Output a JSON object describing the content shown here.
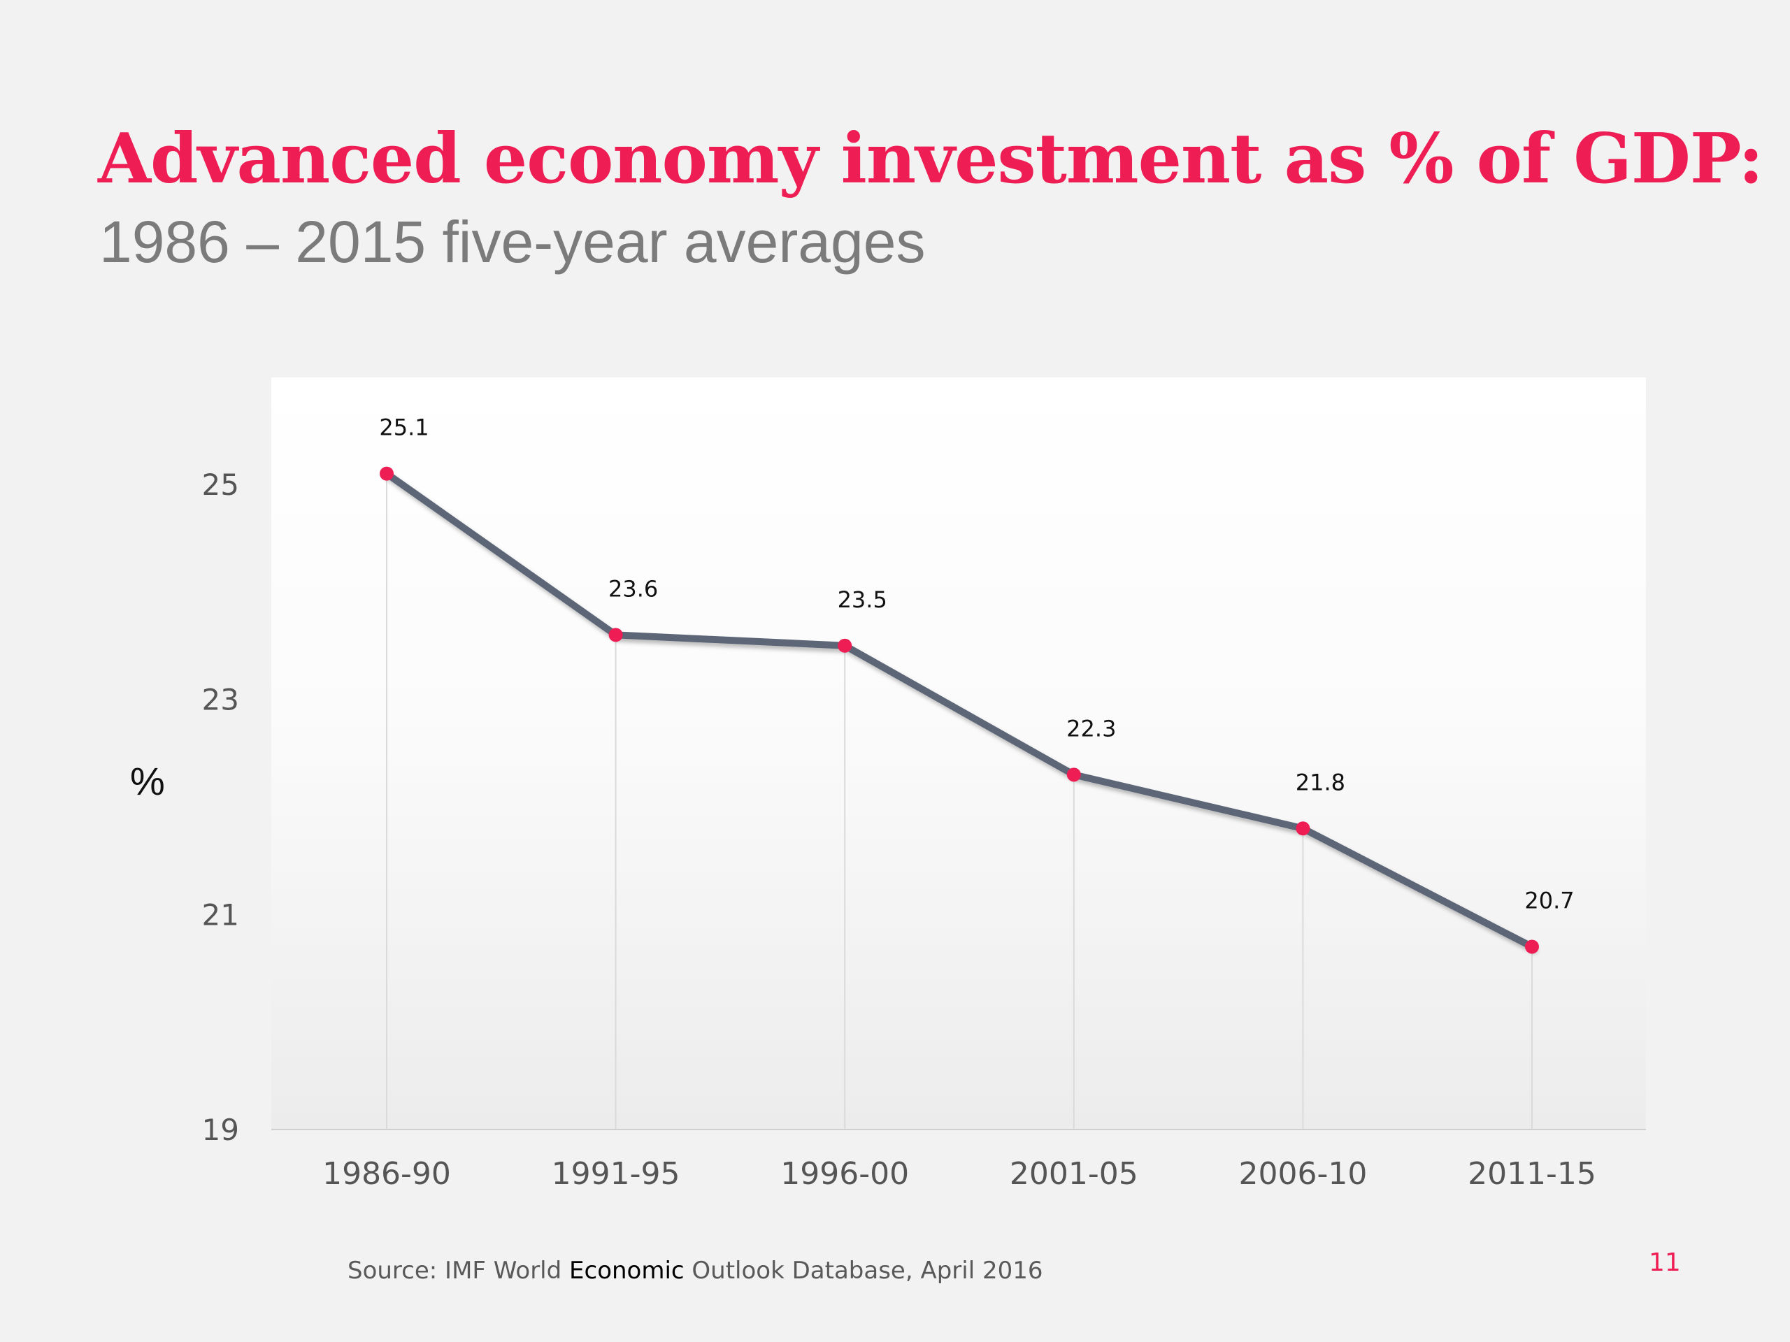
{
  "slide": {
    "title": "Advanced economy investment as % of GDP:",
    "subtitle": "1986 – 2015 five-year averages",
    "source_pre": "Source: IMF World ",
    "source_em": "Economic",
    "source_post": " Outlook Database,  April 2016",
    "page_number": "11"
  },
  "colors": {
    "title": "#ee1e55",
    "line": "#5d6677",
    "marker": "#ee1e55"
  },
  "chart_data": {
    "type": "line",
    "title": "Advanced economy investment as % of GDP:",
    "subtitle": "1986 – 2015 five-year averages",
    "xlabel": "",
    "ylabel": "%",
    "categories": [
      "1986-90",
      "1991-95",
      "1996-00",
      "2001-05",
      "2006-10",
      "2011-15"
    ],
    "series": [
      {
        "values": [
          25.1,
          23.6,
          23.5,
          22.3,
          21.8,
          20.7
        ]
      }
    ],
    "data_labels": [
      "25.1",
      "23.6",
      "23.5",
      "22.3",
      "21.8",
      "20.7"
    ],
    "yticks": [
      19,
      21,
      23,
      25
    ],
    "ylim": [
      19,
      26
    ],
    "grid": false,
    "legend": "none"
  }
}
